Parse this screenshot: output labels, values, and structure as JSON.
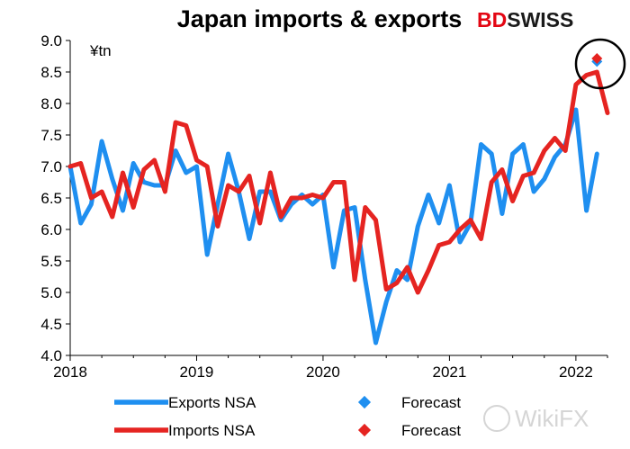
{
  "brand": {
    "part1": "BD",
    "part2": "SWISS",
    "color1": "#e30613",
    "color2": "#1a1a1a"
  },
  "watermark": {
    "text": "WikiFX"
  },
  "chart_data": {
    "type": "line",
    "title": "Japan imports & exports",
    "unit_label": "¥tn",
    "xlim": [
      2018.0,
      2022.25
    ],
    "ylim": [
      4.0,
      9.0
    ],
    "x_ticks": [
      2018,
      2019,
      2020,
      2021,
      2022
    ],
    "x_tick_labels": [
      "2018",
      "2019",
      "2020",
      "2021",
      "2022"
    ],
    "y_ticks": [
      4.0,
      4.5,
      5.0,
      5.5,
      6.0,
      6.5,
      7.0,
      7.5,
      8.0,
      8.5,
      9.0
    ],
    "y_tick_labels": [
      "4.0",
      "4.5",
      "5.0",
      "5.5",
      "6.0",
      "6.5",
      "7.0",
      "7.5",
      "8.0",
      "8.5",
      "9.0"
    ],
    "grid": false,
    "legend_position": "bottom",
    "series": [
      {
        "name": "Exports NSA",
        "color": "#1f8ff0",
        "start_year": 2018,
        "start_month": 1,
        "values": [
          7.0,
          6.1,
          6.4,
          7.4,
          6.8,
          6.3,
          7.05,
          6.75,
          6.7,
          6.7,
          7.25,
          6.9,
          7.0,
          5.6,
          6.4,
          7.2,
          6.6,
          5.85,
          6.6,
          6.6,
          6.15,
          6.4,
          6.55,
          6.4,
          6.55,
          5.4,
          6.3,
          6.35,
          5.2,
          4.2,
          4.85,
          5.35,
          5.2,
          6.05,
          6.55,
          6.1,
          6.7,
          5.8,
          6.1,
          7.35,
          7.2,
          6.25,
          7.2,
          7.35,
          6.6,
          6.8,
          7.15,
          7.35,
          7.9,
          6.3,
          7.2
        ]
      },
      {
        "name": "Imports NSA",
        "color": "#e52421",
        "start_year": 2018,
        "start_month": 1,
        "values": [
          7.0,
          7.05,
          6.5,
          6.6,
          6.2,
          6.9,
          6.35,
          6.95,
          7.1,
          6.6,
          7.7,
          7.65,
          7.1,
          7.0,
          6.05,
          6.7,
          6.6,
          6.85,
          6.1,
          6.9,
          6.2,
          6.5,
          6.5,
          6.55,
          6.5,
          6.75,
          6.75,
          5.2,
          6.35,
          6.15,
          5.05,
          5.15,
          5.4,
          5.0,
          5.35,
          5.75,
          5.8,
          6.0,
          6.15,
          5.85,
          6.75,
          6.95,
          6.45,
          6.85,
          6.9,
          7.25,
          7.45,
          7.25,
          8.3,
          8.45,
          8.5,
          7.85
        ]
      }
    ],
    "forecasts": [
      {
        "name": "Forecast",
        "of_series": "Exports NSA",
        "year": 2022,
        "month": 3,
        "value": 8.68,
        "color": "#1f8ff0"
      },
      {
        "name": "Forecast",
        "of_series": "Imports NSA",
        "year": 2022,
        "month": 3,
        "value": 8.7,
        "color": "#e52421"
      }
    ]
  }
}
